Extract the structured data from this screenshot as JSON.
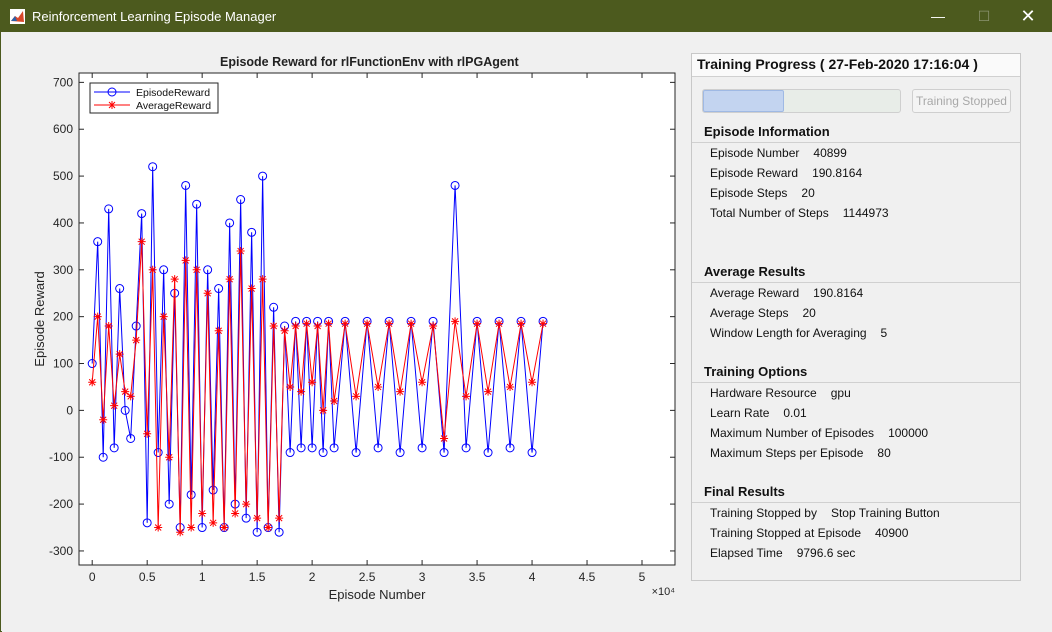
{
  "window": {
    "title": "Reinforcement Learning Episode Manager",
    "buttons": {
      "minimize": "—",
      "maximize": "☐",
      "close": "✕"
    }
  },
  "chart_data": {
    "type": "line",
    "title": "Episode Reward for rlFunctionEnv with rlPGAgent",
    "xlabel": "Episode Number",
    "ylabel": "Episode Reward",
    "xlim": [
      -0.12,
      5.3
    ],
    "ylim": [
      -330,
      720
    ],
    "x_scale_label": "×10⁴",
    "xticks": [
      0,
      0.5,
      1,
      1.5,
      2,
      2.5,
      3,
      3.5,
      4,
      4.5,
      5
    ],
    "xtick_labels": [
      "0",
      "0.5",
      "1",
      "1.5",
      "2",
      "2.5",
      "3",
      "3.5",
      "4",
      "4.5",
      "5"
    ],
    "yticks": [
      -300,
      -200,
      -100,
      0,
      100,
      200,
      300,
      400,
      500,
      600,
      700
    ],
    "ytick_labels": [
      "-300",
      "-200",
      "-100",
      "0",
      "100",
      "200",
      "300",
      "400",
      "500",
      "600",
      "700"
    ],
    "grid": false,
    "legend_position": "top-left",
    "series": [
      {
        "name": "EpisodeReward",
        "color": "#0000ff",
        "marker": "circle",
        "x": [
          0,
          0.05,
          0.1,
          0.15,
          0.2,
          0.25,
          0.3,
          0.35,
          0.4,
          0.45,
          0.5,
          0.55,
          0.6,
          0.65,
          0.7,
          0.75,
          0.8,
          0.85,
          0.9,
          0.95,
          1.0,
          1.05,
          1.1,
          1.15,
          1.2,
          1.25,
          1.3,
          1.35,
          1.4,
          1.45,
          1.5,
          1.55,
          1.6,
          1.65,
          1.7,
          1.75,
          1.8,
          1.85,
          1.9,
          1.95,
          2.0,
          2.05,
          2.1,
          2.15,
          2.2,
          2.3,
          2.4,
          2.5,
          2.6,
          2.7,
          2.8,
          2.9,
          3.0,
          3.1,
          3.2,
          3.3,
          3.4,
          3.5,
          3.6,
          3.7,
          3.8,
          3.9,
          4.0,
          4.1
        ],
        "values": [
          100,
          360,
          -100,
          430,
          -80,
          260,
          0,
          -60,
          180,
          420,
          -240,
          520,
          -90,
          300,
          -200,
          250,
          -250,
          480,
          -180,
          440,
          -250,
          300,
          -170,
          260,
          -250,
          400,
          -200,
          450,
          -230,
          380,
          -260,
          500,
          -250,
          220,
          -260,
          180,
          -90,
          190,
          -80,
          190,
          -80,
          190,
          -90,
          190,
          -80,
          190,
          -90,
          190,
          -80,
          190,
          -90,
          190,
          -80,
          190,
          -90,
          480,
          -80,
          190,
          -90,
          190,
          -80,
          190,
          -90,
          190
        ]
      },
      {
        "name": "AverageReward",
        "color": "#ff0000",
        "marker": "star",
        "x": [
          0,
          0.05,
          0.1,
          0.15,
          0.2,
          0.25,
          0.3,
          0.35,
          0.4,
          0.45,
          0.5,
          0.55,
          0.6,
          0.65,
          0.7,
          0.75,
          0.8,
          0.85,
          0.9,
          0.95,
          1.0,
          1.05,
          1.1,
          1.15,
          1.2,
          1.25,
          1.3,
          1.35,
          1.4,
          1.45,
          1.5,
          1.55,
          1.6,
          1.65,
          1.7,
          1.75,
          1.8,
          1.85,
          1.9,
          1.95,
          2.0,
          2.05,
          2.1,
          2.15,
          2.2,
          2.3,
          2.4,
          2.5,
          2.6,
          2.7,
          2.8,
          2.9,
          3.0,
          3.1,
          3.2,
          3.3,
          3.4,
          3.5,
          3.6,
          3.7,
          3.8,
          3.9,
          4.0,
          4.1
        ],
        "values": [
          60,
          200,
          -20,
          180,
          10,
          120,
          40,
          30,
          150,
          360,
          -50,
          300,
          -250,
          200,
          -100,
          280,
          -260,
          320,
          -250,
          300,
          -220,
          250,
          -240,
          170,
          -250,
          280,
          -220,
          340,
          -200,
          260,
          -230,
          280,
          -250,
          180,
          -230,
          170,
          50,
          180,
          40,
          185,
          60,
          180,
          0,
          185,
          20,
          185,
          30,
          185,
          50,
          185,
          40,
          185,
          60,
          180,
          -60,
          190,
          30,
          185,
          40,
          185,
          50,
          185,
          60,
          185
        ]
      }
    ]
  },
  "panel": {
    "title": "Training Progress ( 27-Feb-2020 17:16:04 )",
    "progress_fraction": 0.409,
    "stop_button": "Training Stopped",
    "sections": [
      {
        "title": "Episode Information",
        "rows": [
          {
            "label": "Episode Number",
            "value": "40899"
          },
          {
            "label": "Episode Reward",
            "value": "190.8164"
          },
          {
            "label": "Episode Steps",
            "value": "20"
          },
          {
            "label": "Total Number of Steps",
            "value": "1144973"
          }
        ]
      },
      {
        "title": "Average Results",
        "rows": [
          {
            "label": "Average Reward",
            "value": "190.8164"
          },
          {
            "label": "Average Steps",
            "value": "20"
          },
          {
            "label": "Window Length for Averaging",
            "value": "5"
          }
        ]
      },
      {
        "title": "Training Options",
        "rows": [
          {
            "label": "Hardware Resource",
            "value": "gpu"
          },
          {
            "label": "Learn Rate",
            "value": "0.01"
          },
          {
            "label": "Maximum Number of Episodes",
            "value": "100000"
          },
          {
            "label": "Maximum Steps per Episode",
            "value": "80"
          }
        ]
      },
      {
        "title": "Final Results",
        "rows": [
          {
            "label": "Training Stopped by",
            "value": "Stop Training Button"
          },
          {
            "label": "Training Stopped at Episode",
            "value": "40900"
          },
          {
            "label": "Elapsed Time",
            "value": "9796.6 sec"
          }
        ]
      }
    ]
  }
}
